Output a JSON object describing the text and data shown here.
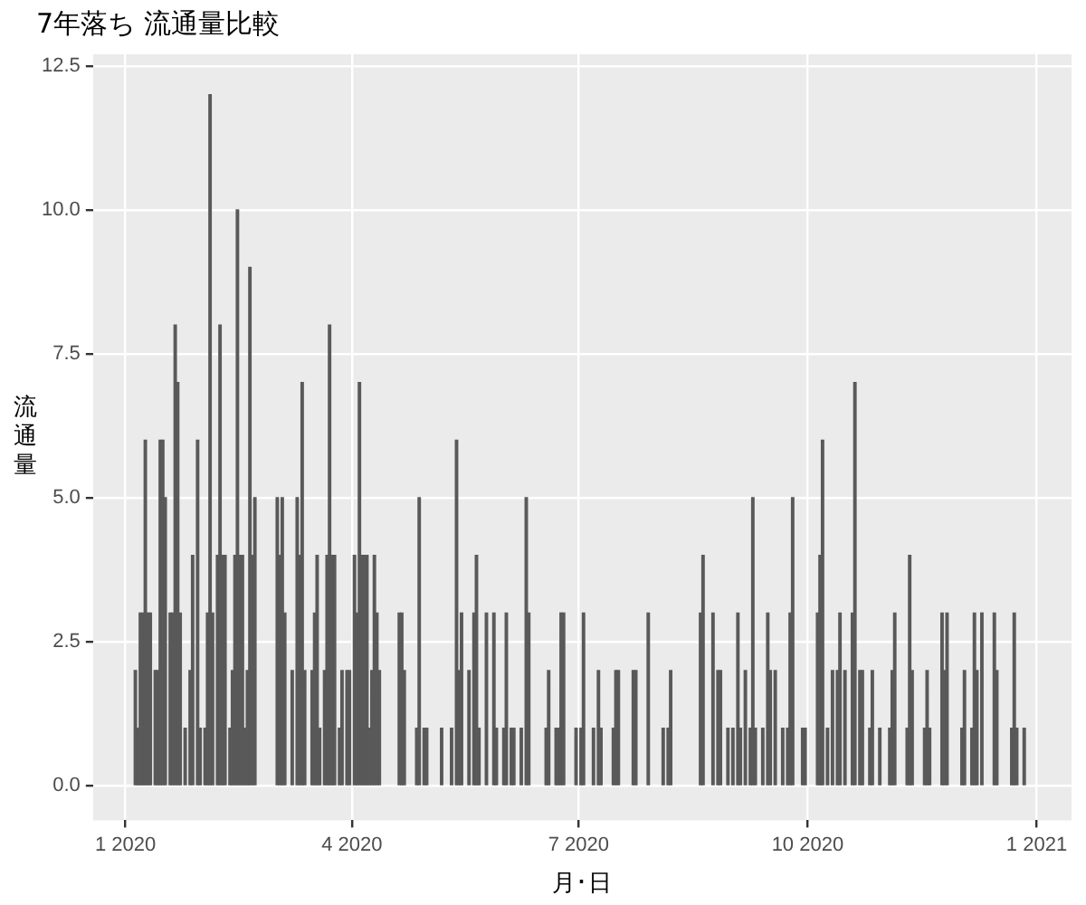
{
  "chart_data": {
    "type": "bar",
    "title": "7年落ち 流通量比較",
    "xlabel": "月･日",
    "ylabel": "流通量",
    "color": "#595959",
    "grid": true,
    "legend": false,
    "xlim": [
      "2019-12-19",
      "2021-01-15"
    ],
    "xticks": [
      {
        "value": "2020-01-01",
        "label": "1 2020"
      },
      {
        "value": "2020-04-01",
        "label": "4 2020"
      },
      {
        "value": "2020-07-01",
        "label": "7 2020"
      },
      {
        "value": "2020-10-01",
        "label": "10 2020"
      },
      {
        "value": "2021-01-01",
        "label": "1 2021"
      }
    ],
    "ylim": [
      -0.6,
      12.7
    ],
    "yticks": [
      {
        "value": 0,
        "label": "0.0"
      },
      {
        "value": 2.5,
        "label": "2.5"
      },
      {
        "value": 5,
        "label": "5.0"
      },
      {
        "value": 7.5,
        "label": "7.5"
      },
      {
        "value": 10,
        "label": "10.0"
      },
      {
        "value": 12.5,
        "label": "12.5"
      }
    ],
    "x": [
      "2020-01-05",
      "2020-01-06",
      "2020-01-07",
      "2020-01-08",
      "2020-01-09",
      "2020-01-10",
      "2020-01-11",
      "2020-01-13",
      "2020-01-14",
      "2020-01-15",
      "2020-01-16",
      "2020-01-17",
      "2020-01-19",
      "2020-01-20",
      "2020-01-21",
      "2020-01-22",
      "2020-01-23",
      "2020-01-25",
      "2020-01-27",
      "2020-01-28",
      "2020-01-30",
      "2020-01-31",
      "2020-02-02",
      "2020-02-03",
      "2020-02-04",
      "2020-02-05",
      "2020-02-07",
      "2020-02-08",
      "2020-02-09",
      "2020-02-10",
      "2020-02-12",
      "2020-02-13",
      "2020-02-14",
      "2020-02-15",
      "2020-02-16",
      "2020-02-17",
      "2020-02-18",
      "2020-02-19",
      "2020-02-20",
      "2020-02-21",
      "2020-02-22",
      "2020-03-02",
      "2020-03-03",
      "2020-03-04",
      "2020-03-05",
      "2020-03-08",
      "2020-03-10",
      "2020-03-11",
      "2020-03-12",
      "2020-03-13",
      "2020-03-16",
      "2020-03-17",
      "2020-03-18",
      "2020-03-19",
      "2020-03-21",
      "2020-03-22",
      "2020-03-23",
      "2020-03-24",
      "2020-03-25",
      "2020-03-27",
      "2020-03-28",
      "2020-03-30",
      "2020-03-31",
      "2020-04-02",
      "2020-04-03",
      "2020-04-04",
      "2020-04-05",
      "2020-04-06",
      "2020-04-07",
      "2020-04-08",
      "2020-04-09",
      "2020-04-10",
      "2020-04-11",
      "2020-04-12",
      "2020-04-20",
      "2020-04-21",
      "2020-04-22",
      "2020-04-27",
      "2020-04-28",
      "2020-04-30",
      "2020-05-01",
      "2020-05-07",
      "2020-05-11",
      "2020-05-13",
      "2020-05-14",
      "2020-05-15",
      "2020-05-18",
      "2020-05-20",
      "2020-05-21",
      "2020-05-22",
      "2020-05-25",
      "2020-05-28",
      "2020-05-29",
      "2020-06-01",
      "2020-06-02",
      "2020-06-04",
      "2020-06-05",
      "2020-06-08",
      "2020-06-10",
      "2020-06-11",
      "2020-06-18",
      "2020-06-19",
      "2020-06-22",
      "2020-06-23",
      "2020-06-24",
      "2020-06-25",
      "2020-06-30",
      "2020-07-02",
      "2020-07-03",
      "2020-07-07",
      "2020-07-09",
      "2020-07-10",
      "2020-07-15",
      "2020-07-16",
      "2020-07-17",
      "2020-07-23",
      "2020-07-24",
      "2020-07-29",
      "2020-08-04",
      "2020-08-06",
      "2020-08-07",
      "2020-08-19",
      "2020-08-20",
      "2020-08-24",
      "2020-08-26",
      "2020-08-27",
      "2020-08-30",
      "2020-09-01",
      "2020-09-03",
      "2020-09-04",
      "2020-09-06",
      "2020-09-08",
      "2020-09-09",
      "2020-09-10",
      "2020-09-13",
      "2020-09-15",
      "2020-09-16",
      "2020-09-18",
      "2020-09-21",
      "2020-09-23",
      "2020-09-24",
      "2020-09-25",
      "2020-09-29",
      "2020-09-30",
      "2020-10-05",
      "2020-10-06",
      "2020-10-07",
      "2020-10-09",
      "2020-10-11",
      "2020-10-13",
      "2020-10-14",
      "2020-10-16",
      "2020-10-19",
      "2020-10-20",
      "2020-10-22",
      "2020-10-23",
      "2020-10-26",
      "2020-10-27",
      "2020-10-30",
      "2020-11-03",
      "2020-11-04",
      "2020-11-05",
      "2020-11-10",
      "2020-11-11",
      "2020-11-12",
      "2020-11-17",
      "2020-11-18",
      "2020-11-19",
      "2020-11-24",
      "2020-11-25",
      "2020-11-26",
      "2020-12-02",
      "2020-12-03",
      "2020-12-06",
      "2020-12-07",
      "2020-12-08",
      "2020-12-10",
      "2020-12-15",
      "2020-12-16",
      "2020-12-22",
      "2020-12-23",
      "2020-12-24",
      "2020-12-27"
    ],
    "values": [
      2,
      1,
      3,
      3,
      6,
      3,
      3,
      2,
      2,
      6,
      6,
      5,
      3,
      3,
      8,
      7,
      3,
      1,
      2,
      4,
      6,
      1,
      1,
      3,
      12,
      3,
      4,
      8,
      4,
      4,
      1,
      2,
      4,
      10,
      4,
      4,
      1,
      2,
      9,
      4,
      5,
      5,
      4,
      5,
      3,
      2,
      5,
      4,
      7,
      2,
      2,
      3,
      4,
      1,
      2,
      4,
      8,
      4,
      4,
      1,
      2,
      2,
      2,
      4,
      3,
      7,
      4,
      4,
      4,
      1,
      2,
      4,
      3,
      2,
      3,
      3,
      2,
      1,
      5,
      1,
      1,
      1,
      1,
      6,
      2,
      3,
      2,
      3,
      4,
      1,
      3,
      3,
      1,
      1,
      3,
      1,
      1,
      1,
      5,
      3,
      1,
      2,
      1,
      1,
      3,
      3,
      1,
      1,
      3,
      1,
      2,
      1,
      1,
      2,
      2,
      2,
      2,
      3,
      1,
      1,
      2,
      3,
      4,
      3,
      2,
      2,
      1,
      1,
      3,
      1,
      2,
      1,
      5,
      1,
      1,
      3,
      2,
      2,
      1,
      1,
      3,
      5,
      1,
      1,
      3,
      4,
      6,
      1,
      2,
      2,
      3,
      2,
      3,
      7,
      2,
      2,
      1,
      2,
      1,
      1,
      2,
      3,
      1,
      4,
      2,
      1,
      2,
      1,
      3,
      2,
      3,
      1,
      2,
      1,
      3,
      2,
      3,
      3,
      2,
      1,
      3,
      1,
      1
    ]
  }
}
